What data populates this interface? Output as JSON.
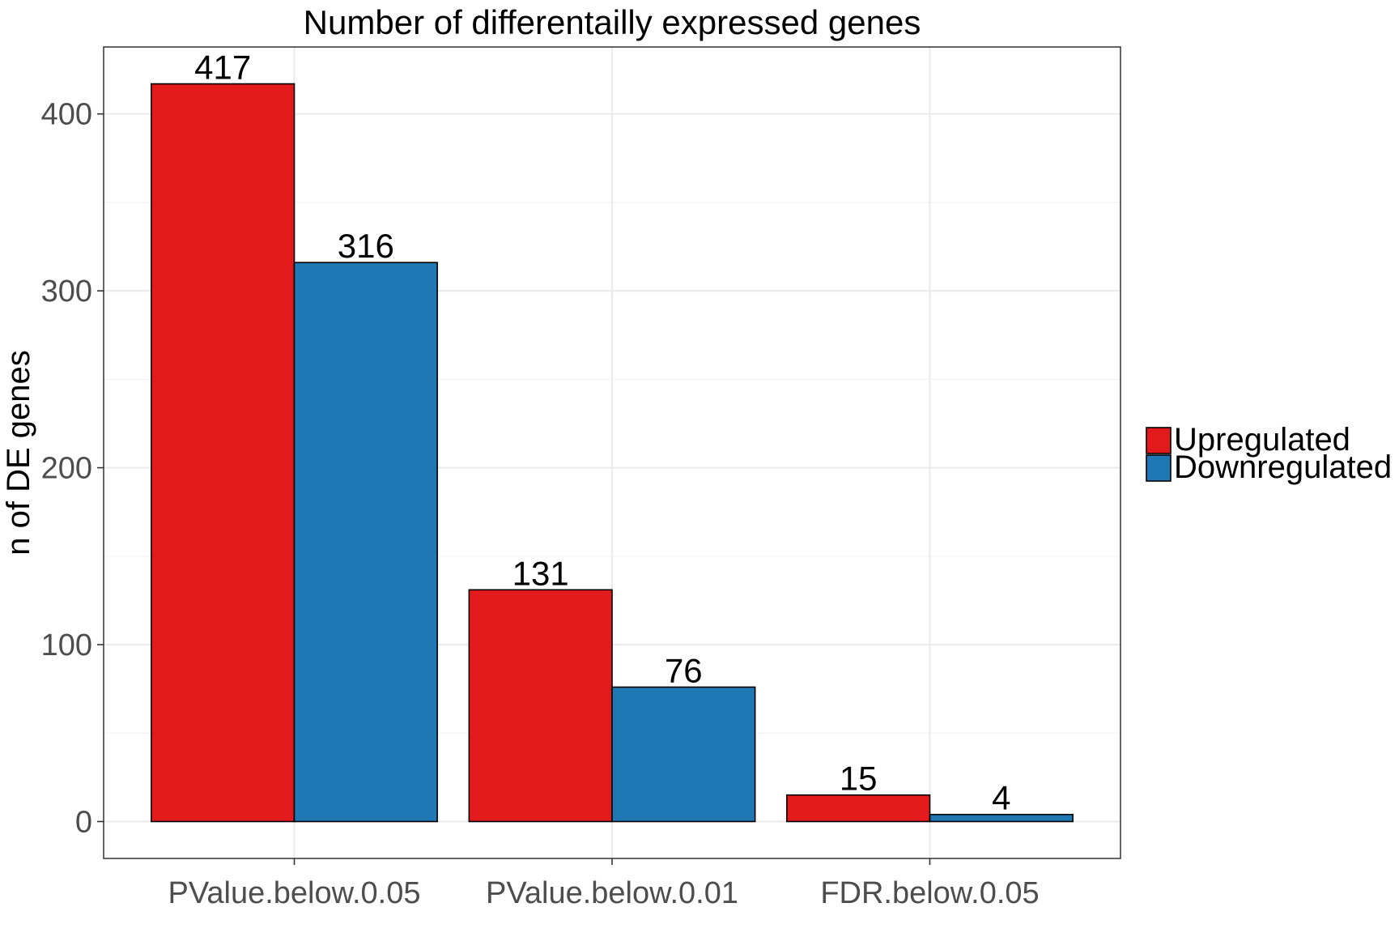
{
  "chart_data": {
    "type": "bar",
    "title": "Number of differentailly expressed genes",
    "xlabel": "",
    "ylabel": "n of DE genes",
    "categories": [
      "PValue.below.0.05",
      "PValue.below.0.01",
      "FDR.below.0.05"
    ],
    "series": [
      {
        "name": "Upregulated",
        "values": [
          417,
          131,
          15
        ],
        "color": "#e31a1c"
      },
      {
        "name": "Downregulated",
        "values": [
          316,
          76,
          4
        ],
        "color": "#1f78b4"
      }
    ],
    "ylim": [
      -20.85,
      437.85
    ],
    "yticks": [
      0,
      100,
      200,
      300,
      400
    ],
    "ytick_labels": [
      "0",
      "100",
      "200",
      "300",
      "400"
    ],
    "grid": true,
    "legend_position": "right",
    "data_labels": true
  }
}
